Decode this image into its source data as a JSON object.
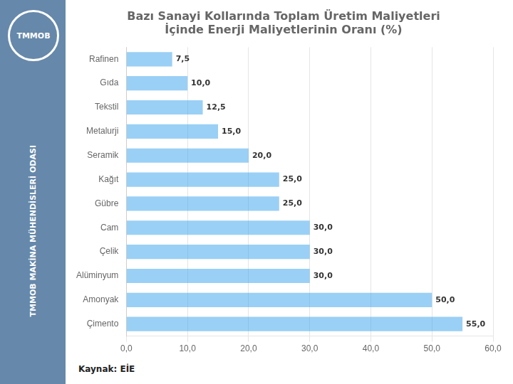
{
  "chart_data": {
    "type": "bar",
    "orientation": "horizontal",
    "title": "Bazı Sanayi Kollarında Toplam Üretim Maliyetleri\nİçinde Enerji Maliyetlerinin Oranı (%)",
    "categories": [
      "Rafinen",
      "Gıda",
      "Tekstil",
      "Metalurji",
      "Seramik",
      "Kağıt",
      "Gübre",
      "Cam",
      "Çelik",
      "Alüminyum",
      "Amonyak",
      "Çimento"
    ],
    "values": [
      7.5,
      10.0,
      12.5,
      15.0,
      20.0,
      25.0,
      25.0,
      30.0,
      30.0,
      30.0,
      50.0,
      55.0
    ],
    "value_labels": [
      "7,5",
      "10,0",
      "12,5",
      "15,0",
      "20,0",
      "25,0",
      "25,0",
      "30,0",
      "30,0",
      "30,0",
      "50,0",
      "55,0"
    ],
    "data_labels": true,
    "xlim": [
      0,
      60
    ],
    "xticks": [
      {
        "value": 0,
        "label": "0,0"
      },
      {
        "value": 10,
        "label": "10,0"
      },
      {
        "value": 20,
        "label": "20,0"
      },
      {
        "value": 30,
        "label": "30,0"
      },
      {
        "value": 40,
        "label": "40,0"
      },
      {
        "value": 50,
        "label": "50,0"
      },
      {
        "value": 60,
        "label": "60,0"
      }
    ],
    "grid": true,
    "annotations": [
      "TMMOB MAKİNA MÜHENDİSLERİ ODASI",
      "TMMOB",
      "Kaynak: EİE"
    ]
  }
}
